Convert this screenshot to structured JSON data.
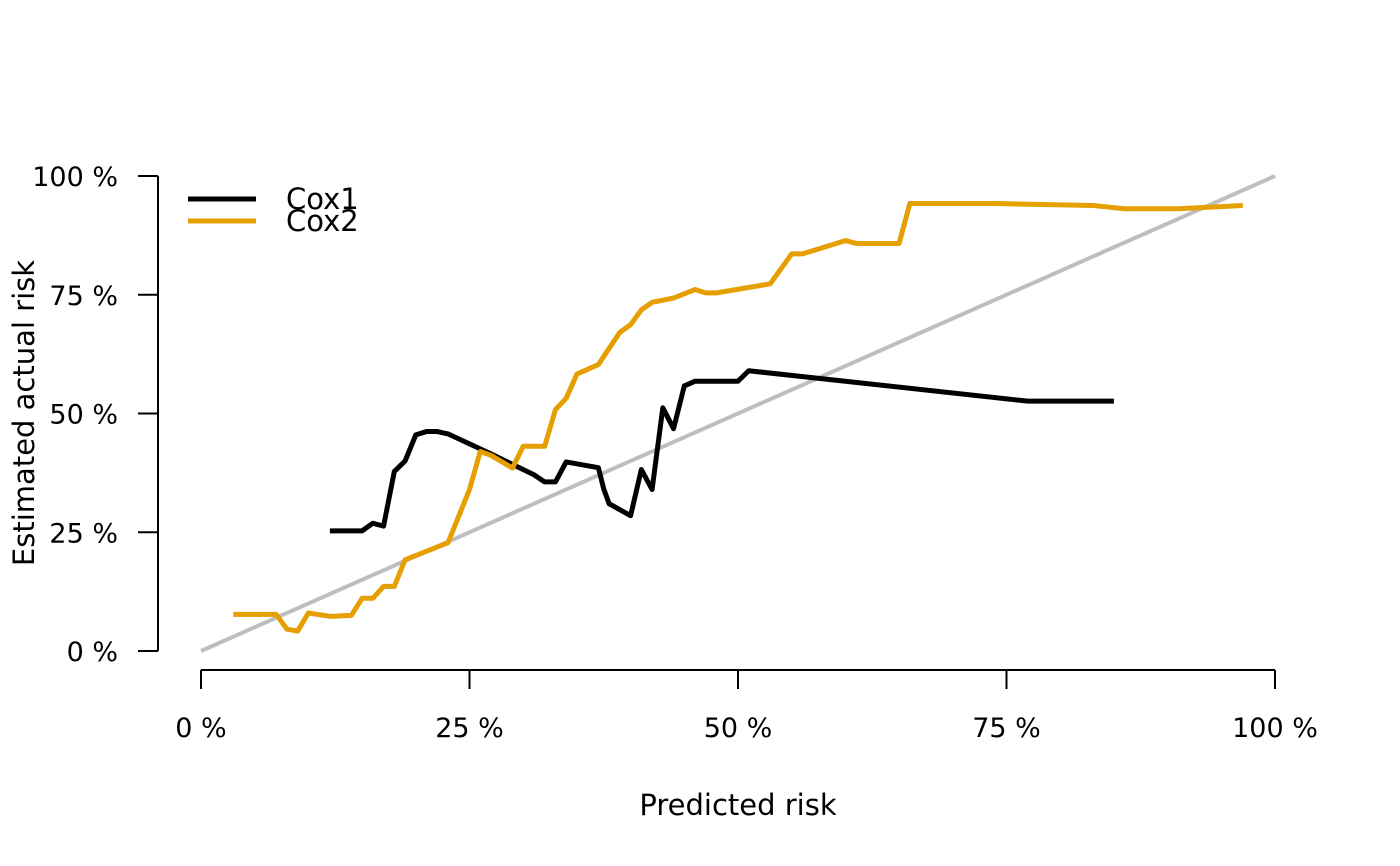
{
  "chart_data": {
    "type": "line",
    "title": "",
    "xlabel": "Predicted risk",
    "ylabel": "Estimated actual risk",
    "xlim": [
      0,
      100
    ],
    "ylim": [
      0,
      100
    ],
    "x_ticks": [
      0,
      25,
      50,
      75,
      100
    ],
    "x_tick_labels": [
      "0 %",
      "25 %",
      "50 %",
      "75 %",
      "100 %"
    ],
    "y_ticks": [
      0,
      25,
      50,
      75,
      100
    ],
    "y_tick_labels": [
      "0 %",
      "25 %",
      "50 %",
      "75 %",
      "100 %"
    ],
    "grid": false,
    "legend_position": "top-left",
    "reference_line": {
      "x": [
        0,
        100
      ],
      "y": [
        0,
        100
      ],
      "color": "#bebebe"
    },
    "series": [
      {
        "name": "Cox1",
        "color": "#000000",
        "points": [
          [
            12,
            25.3
          ],
          [
            15,
            25.3
          ],
          [
            16,
            26.9
          ],
          [
            17,
            26.3
          ],
          [
            18,
            37.8
          ],
          [
            19,
            40.0
          ],
          [
            20,
            45.5
          ],
          [
            21,
            46.2
          ],
          [
            22,
            46.2
          ],
          [
            23,
            45.7
          ],
          [
            25,
            43.6
          ],
          [
            27,
            41.5
          ],
          [
            29,
            39.3
          ],
          [
            31,
            37.1
          ],
          [
            32,
            35.6
          ],
          [
            33,
            35.6
          ],
          [
            34,
            39.8
          ],
          [
            37,
            38.6
          ],
          [
            37.5,
            34.1
          ],
          [
            38,
            31.0
          ],
          [
            40,
            28.5
          ],
          [
            41,
            38.2
          ],
          [
            42,
            34.0
          ],
          [
            43,
            51.2
          ],
          [
            44,
            46.8
          ],
          [
            45,
            55.8
          ],
          [
            46,
            56.8
          ],
          [
            50,
            56.8
          ],
          [
            51,
            59.0
          ],
          [
            77,
            52.6
          ],
          [
            85,
            52.6
          ]
        ]
      },
      {
        "name": "Cox2",
        "color": "#e69f00",
        "points": [
          [
            3,
            7.7
          ],
          [
            7,
            7.7
          ],
          [
            8,
            4.6
          ],
          [
            9,
            4.2
          ],
          [
            10,
            8.0
          ],
          [
            12,
            7.3
          ],
          [
            14,
            7.5
          ],
          [
            15,
            11.1
          ],
          [
            16,
            11.1
          ],
          [
            17,
            13.6
          ],
          [
            18,
            13.6
          ],
          [
            19,
            19.2
          ],
          [
            23,
            22.8
          ],
          [
            25,
            34.0
          ],
          [
            26,
            42.0
          ],
          [
            27,
            41.2
          ],
          [
            29,
            38.5
          ],
          [
            30,
            43.1
          ],
          [
            31.5,
            43.1
          ],
          [
            32,
            43.1
          ],
          [
            33,
            50.8
          ],
          [
            34,
            53.2
          ],
          [
            35,
            58.3
          ],
          [
            37,
            60.3
          ],
          [
            39,
            67.1
          ],
          [
            40,
            68.7
          ],
          [
            41,
            71.8
          ],
          [
            42,
            73.4
          ],
          [
            44,
            74.3
          ],
          [
            46,
            76.1
          ],
          [
            47,
            75.4
          ],
          [
            48,
            75.4
          ],
          [
            53,
            77.3
          ],
          [
            55,
            83.6
          ],
          [
            56,
            83.6
          ],
          [
            60,
            86.4
          ],
          [
            61,
            85.8
          ],
          [
            65,
            85.8
          ],
          [
            66,
            94.2
          ],
          [
            74,
            94.2
          ],
          [
            83,
            93.8
          ],
          [
            86,
            93.1
          ],
          [
            91,
            93.1
          ],
          [
            97,
            93.8
          ]
        ]
      }
    ]
  }
}
